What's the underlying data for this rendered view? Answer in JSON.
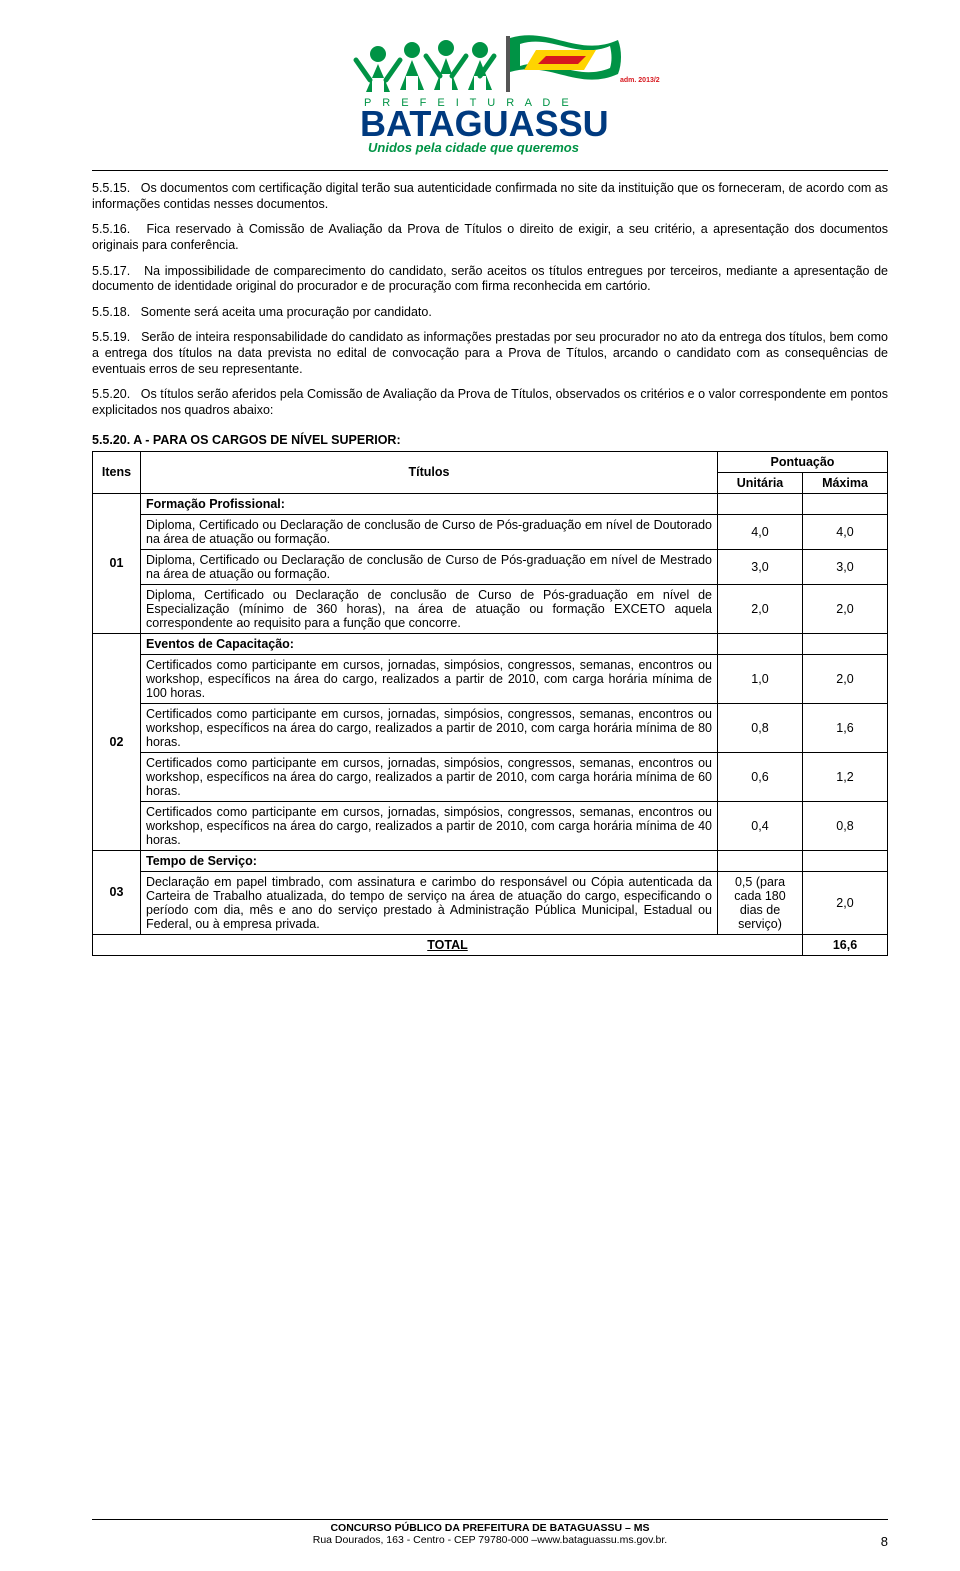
{
  "logo": {
    "adm_label": "adm. 2013/2016",
    "prefeitura_line": "P R E F E I T U R A  D E",
    "city": "BATAGUASSU",
    "slogan": "Unidos pela cidade que queremos",
    "flag_colors": {
      "green": "#009345",
      "yellow": "#ffd400",
      "red": "#d7181f",
      "white": "#ffffff"
    },
    "people_color": "#009345",
    "text_prefeitura_color": "#009345",
    "text_city_color": "#003a7f",
    "text_slogan_color": "#009345"
  },
  "paragraphs": {
    "p1_num": "5.5.15.",
    "p1": "Os documentos com certificação digital terão sua autenticidade confirmada no site da instituição que os forneceram, de acordo com as informações contidas nesses documentos.",
    "p2_num": "5.5.16.",
    "p2": "Fica reservado à Comissão de Avaliação da Prova de Títulos o direito de exigir, a seu critério, a apresentação dos documentos originais para conferência.",
    "p3_num": "5.5.17.",
    "p3": "Na impossibilidade de comparecimento do candidato, serão aceitos os títulos entregues por terceiros, mediante a apresentação de documento de identidade original do procurador e de procuração com firma reconhecida em cartório.",
    "p4_num": "5.5.18.",
    "p4": "Somente será aceita uma procuração por candidato.",
    "p5_num": "5.5.19.",
    "p5": "Serão de inteira responsabilidade do candidato as informações prestadas por seu procurador no ato da entrega dos títulos, bem como a entrega dos títulos na data prevista no edital de convocação para a Prova de Títulos, arcando o candidato com as consequências de eventuais erros de seu representante.",
    "p6_num": "5.5.20.",
    "p6": "Os títulos serão aferidos pela Comissão de Avaliação da Prova de Títulos, observados os critérios e o valor correspondente em pontos explicitados nos quadros abaixo:"
  },
  "table": {
    "title": "5.5.20. A - PARA OS CARGOS DE NÍVEL SUPERIOR:",
    "headers": {
      "itens": "Itens",
      "titulos": "Títulos",
      "pontuacao": "Pontuação",
      "unitaria": "Unitária",
      "maxima": "Máxima"
    },
    "sections": [
      {
        "num": "01",
        "label": "Formação Profissional:",
        "rows": [
          {
            "desc": "Diploma, Certificado ou Declaração de conclusão de Curso de Pós-graduação em nível de Doutorado na área de atuação ou formação.",
            "unit": "4,0",
            "max": "4,0"
          },
          {
            "desc": "Diploma, Certificado ou Declaração de conclusão de Curso de Pós-graduação em nível de Mestrado na área de atuação ou formação.",
            "unit": "3,0",
            "max": "3,0"
          },
          {
            "desc": "Diploma, Certificado ou Declaração de conclusão de Curso de Pós-graduação em nível de Especialização (mínimo de 360 horas), na área de atuação ou formação EXCETO aquela correspondente ao requisito para a função que concorre.",
            "unit": "2,0",
            "max": "2,0"
          }
        ]
      },
      {
        "num": "02",
        "label": "Eventos de Capacitação:",
        "rows": [
          {
            "desc": "Certificados como participante em cursos, jornadas, simpósios, congressos, semanas, encontros ou workshop, específicos na área do cargo, realizados a partir de 2010, com carga horária mínima de 100 horas.",
            "unit": "1,0",
            "max": "2,0"
          },
          {
            "desc": "Certificados como participante em cursos, jornadas, simpósios, congressos, semanas, encontros ou workshop, específicos na área do cargo, realizados a partir de 2010, com carga horária mínima de 80 horas.",
            "unit": "0,8",
            "max": "1,6"
          },
          {
            "desc": "Certificados como participante em cursos, jornadas, simpósios, congressos, semanas, encontros ou workshop, específicos na área do cargo, realizados a partir de 2010, com carga horária mínima de 60 horas.",
            "unit": "0,6",
            "max": "1,2"
          },
          {
            "desc": "Certificados como participante em cursos, jornadas, simpósios, congressos, semanas, encontros ou workshop, específicos na área do cargo, realizados a partir de 2010, com carga horária mínima de 40 horas.",
            "unit": "0,4",
            "max": "0,8"
          }
        ]
      },
      {
        "num": "03",
        "label": "Tempo de Serviço:",
        "rows": [
          {
            "desc": "Declaração em papel timbrado, com assinatura e carimbo do responsável ou Cópia autenticada da Carteira de Trabalho atualizada, do tempo de serviço na área de atuação do cargo, especificando o período com dia, mês e ano do serviço prestado à Administração Pública Municipal, Estadual ou Federal, ou à empresa privada.",
            "unit": "0,5 (para cada 180 dias de serviço)",
            "max": "2,0"
          }
        ]
      }
    ],
    "total_label": "TOTAL",
    "total_value": "16,6"
  },
  "footer": {
    "line1": "CONCURSO PÚBLICO DA PREFEITURA DE BATAGUASSU – MS",
    "line2": "Rua Dourados, 163 - Centro - CEP 79780-000 –www.bataguassu.ms.gov.br.",
    "page_number": "8"
  }
}
